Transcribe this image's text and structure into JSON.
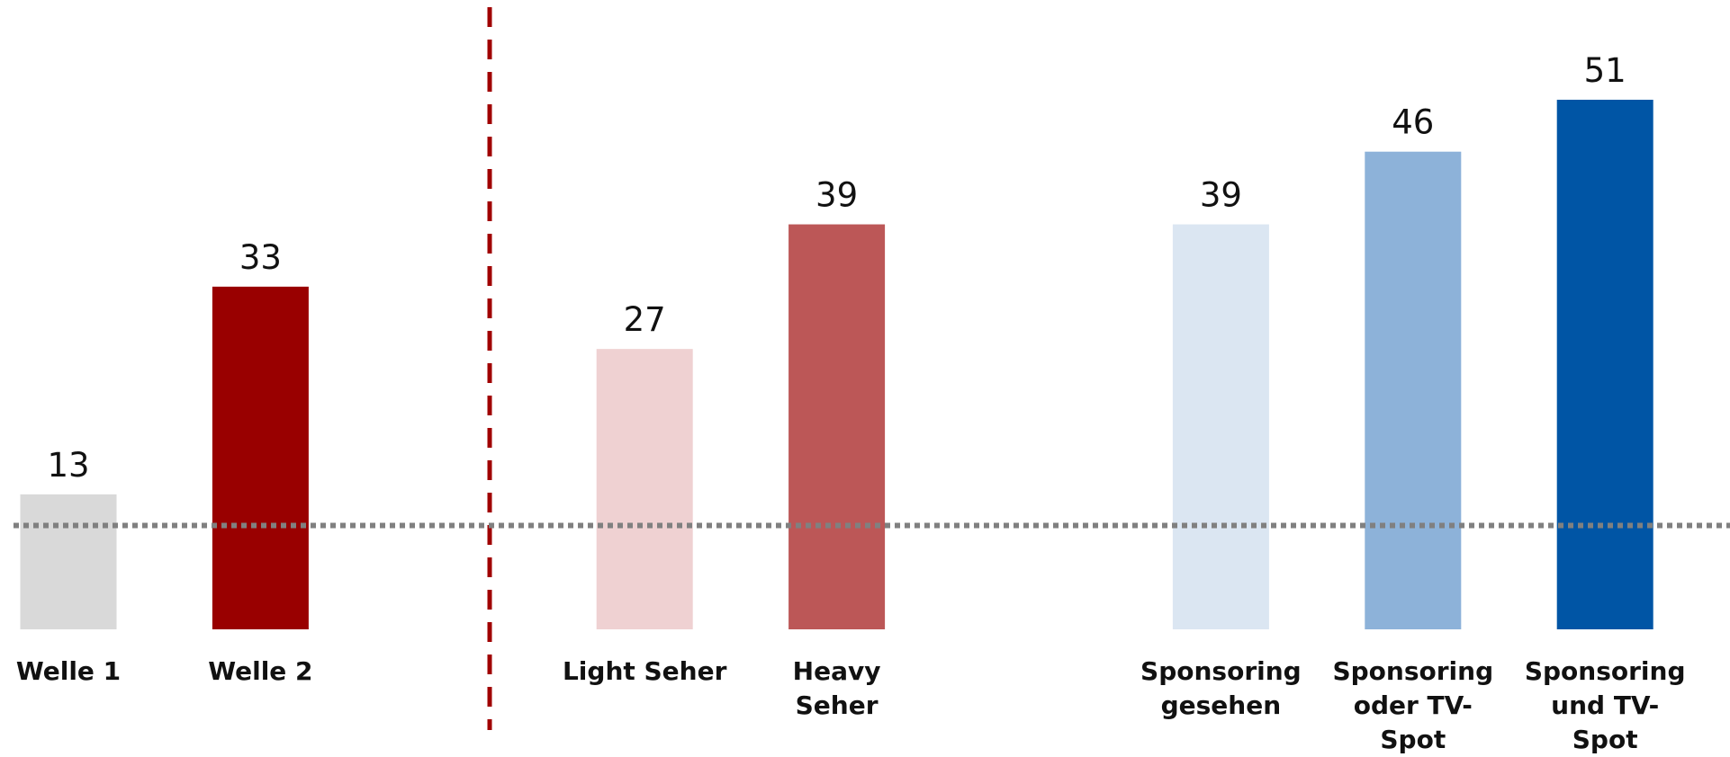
{
  "chart_data": {
    "type": "bar",
    "categories": [
      "Welle 1",
      "Welle 2",
      null,
      "Light Seher",
      "Heavy Seher",
      null,
      "Sponsoring gesehen",
      "Sponsoring oder TV-Spot",
      "Sponsoring und TV-Spot"
    ],
    "values": [
      13,
      33,
      null,
      27,
      39,
      null,
      39,
      46,
      51
    ],
    "colors": [
      "#d9d9d9",
      "#990000",
      null,
      "#efd1d2",
      "#bc5757",
      null,
      "#dbe6f2",
      "#8db2d9",
      "#0055a5"
    ],
    "ylim": [
      0,
      60
    ],
    "reference_value": 10
  }
}
